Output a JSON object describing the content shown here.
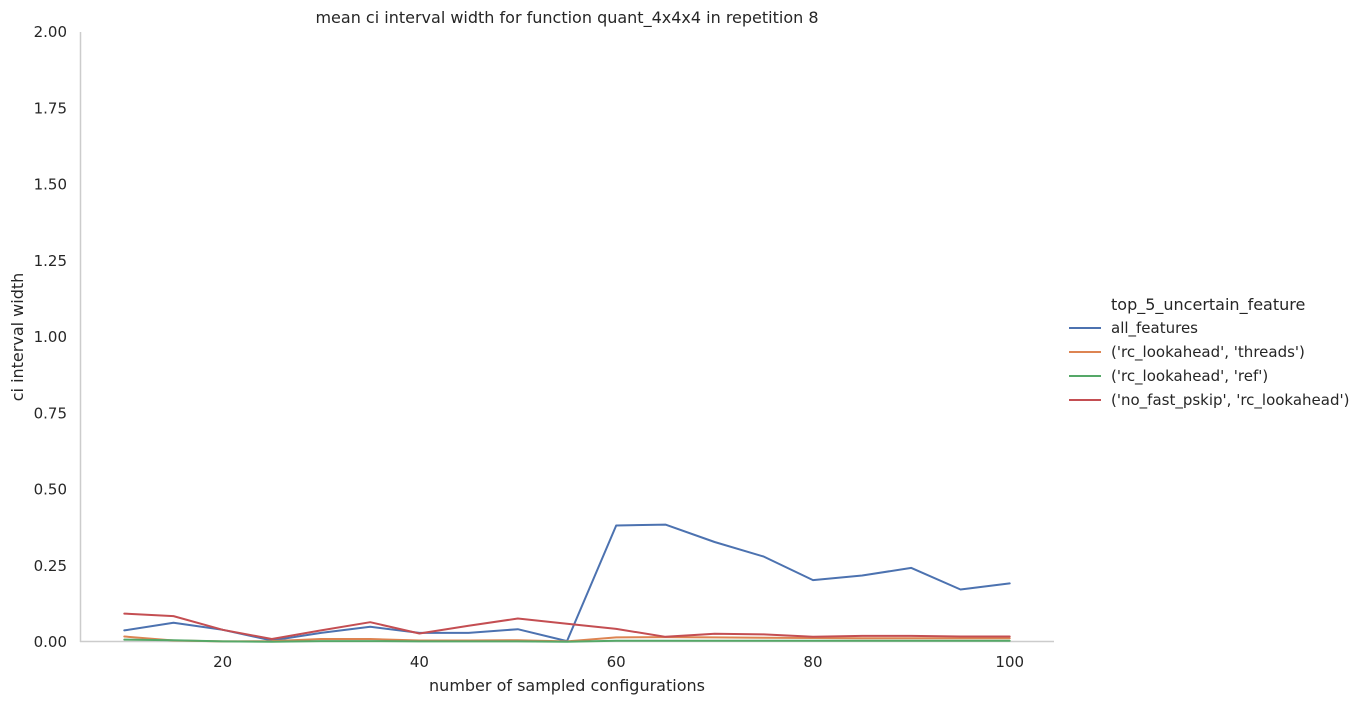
{
  "chart_data": {
    "type": "line",
    "title": "mean ci interval width for function quant_4x4x4 in repetition 8",
    "xlabel": "number of sampled configurations",
    "ylabel": "ci interval width",
    "xlim": [
      5.5,
      104.5
    ],
    "ylim": [
      0,
      2.0
    ],
    "xticks": [
      20,
      40,
      60,
      80,
      100
    ],
    "yticks": [
      0.0,
      0.25,
      0.5,
      0.75,
      1.0,
      1.25,
      1.5,
      1.75,
      2.0
    ],
    "ytick_labels": [
      "0.00",
      "0.25",
      "0.50",
      "0.75",
      "1.00",
      "1.25",
      "1.50",
      "1.75",
      "2.00"
    ],
    "grid": false,
    "legend": {
      "title": "top_5_uncertain_feature",
      "placement": "right"
    },
    "x": [
      10,
      15,
      20,
      25,
      30,
      35,
      40,
      45,
      50,
      55,
      60,
      65,
      70,
      75,
      80,
      85,
      90,
      95,
      100
    ],
    "series": [
      {
        "name": "all_features",
        "color": "#4c72b0",
        "values": [
          0.038,
          0.063,
          0.04,
          0.005,
          0.03,
          0.05,
          0.03,
          0.03,
          0.042,
          0.003,
          0.382,
          0.385,
          0.328,
          0.28,
          0.203,
          0.218,
          0.243,
          0.172,
          0.192
        ]
      },
      {
        "name": "('rc_lookahead', 'threads')",
        "color": "#dd8452",
        "values": [
          0.018,
          0.005,
          0.002,
          0.003,
          0.01,
          0.01,
          0.005,
          0.005,
          0.006,
          0.002,
          0.015,
          0.016,
          0.015,
          0.014,
          0.013,
          0.012,
          0.012,
          0.012,
          0.012
        ]
      },
      {
        "name": "('rc_lookahead', 'ref')",
        "color": "#55a868",
        "values": [
          0.008,
          0.006,
          0.002,
          0.001,
          0.003,
          0.003,
          0.002,
          0.002,
          0.002,
          0.001,
          0.004,
          0.004,
          0.004,
          0.004,
          0.004,
          0.004,
          0.004,
          0.004,
          0.004
        ]
      },
      {
        "name": "('no_fast_pskip', 'rc_lookahead')",
        "color": "#c44e52",
        "values": [
          0.093,
          0.085,
          0.04,
          0.01,
          0.038,
          0.065,
          0.028,
          0.053,
          0.077,
          0.06,
          0.043,
          0.017,
          0.027,
          0.025,
          0.017,
          0.02,
          0.02,
          0.018,
          0.018
        ]
      }
    ]
  }
}
